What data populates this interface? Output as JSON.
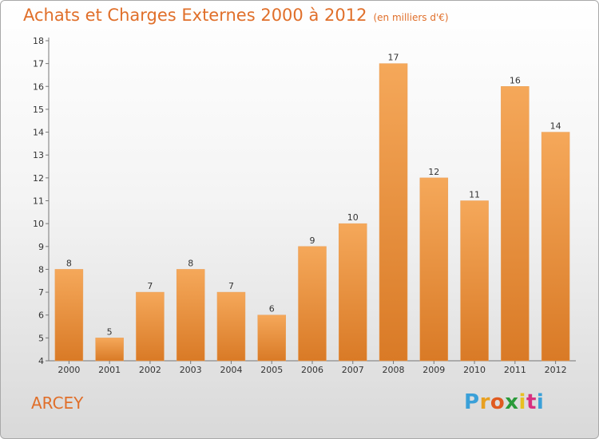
{
  "title": "Achats et Charges Externes 2000 à 2012",
  "subtitle": "(en milliers d'€)",
  "place": "ARCEY",
  "logo": {
    "letters": [
      "P",
      "r",
      "o",
      "x",
      "i",
      "t",
      "i"
    ],
    "colors": [
      "#3aa0d8",
      "#e8a020",
      "#e05a20",
      "#2a9a3a",
      "#e8c020",
      "#d83080",
      "#3aa0d8"
    ]
  },
  "colors": {
    "accent": "#e06f2a",
    "bar_light": "#f5a85a",
    "bar_dark": "#d97a26"
  },
  "chart_data": {
    "type": "bar",
    "categories": [
      "2000",
      "2001",
      "2002",
      "2003",
      "2004",
      "2005",
      "2006",
      "2007",
      "2008",
      "2009",
      "2010",
      "2011",
      "2012"
    ],
    "values": [
      8,
      5,
      7,
      8,
      7,
      6,
      9,
      10,
      17,
      12,
      11,
      16,
      14
    ],
    "title": "Achats et Charges Externes 2000 à 2012",
    "subtitle": "(en milliers d'€)",
    "xlabel": "",
    "ylabel": "",
    "ylim": [
      4,
      18
    ],
    "yticks": [
      4,
      5,
      6,
      7,
      8,
      9,
      10,
      11,
      12,
      13,
      14,
      15,
      16,
      17,
      18
    ],
    "grid": false,
    "data_labels": true
  }
}
